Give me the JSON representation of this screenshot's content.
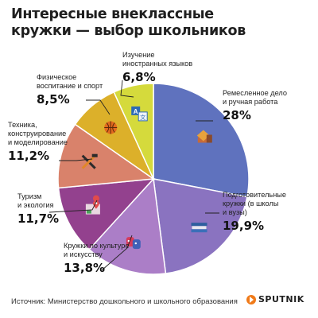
{
  "title": {
    "line1": "Интересные внеклассные",
    "line2": "кружки — выбор школьников"
  },
  "chart_data": {
    "type": "pie",
    "title": "Интересные внеклассные кружки — выбор школьников",
    "slices": [
      {
        "lines": [
          "Ремесленное дело",
          "и ручная работа"
        ],
        "value": 28.0,
        "display": "28%",
        "color": "#5f72be",
        "icon": "craft-icon"
      },
      {
        "lines": [
          "Подготовительные",
          "кружки (в школы",
          "и вузы)"
        ],
        "value": 19.9,
        "display": "19,9%",
        "color": "#8a73c0",
        "icon": "books-icon"
      },
      {
        "lines": [
          "Кружки по культуре",
          "и искусству"
        ],
        "value": 13.8,
        "display": "13,8%",
        "color": "#ab7ec7",
        "icon": "theater-masks-icon"
      },
      {
        "lines": [
          "Туризм",
          "и экология"
        ],
        "value": 11.7,
        "display": "11,7%",
        "color": "#93418e",
        "icon": "map-pin-icon"
      },
      {
        "lines": [
          "Техника,",
          "конструирование",
          "и моделирование"
        ],
        "value": 11.2,
        "display": "11,2%",
        "color": "#d9826b",
        "icon": "tools-icon"
      },
      {
        "lines": [
          "Физическое",
          "воспитание и спорт"
        ],
        "value": 8.5,
        "display": "8,5%",
        "color": "#dcb02a",
        "icon": "sports-ball-icon"
      },
      {
        "lines": [
          "Изучение",
          "иностранных языков"
        ],
        "value": 6.8,
        "display": "6,8%",
        "color": "#d5da3c",
        "icon": "translate-icon"
      }
    ]
  },
  "footer": {
    "source": "Источник: Министерство дошкольного и школьного образования"
  },
  "logo": {
    "text": "SPUTNIK",
    "color": "#f07a19"
  }
}
